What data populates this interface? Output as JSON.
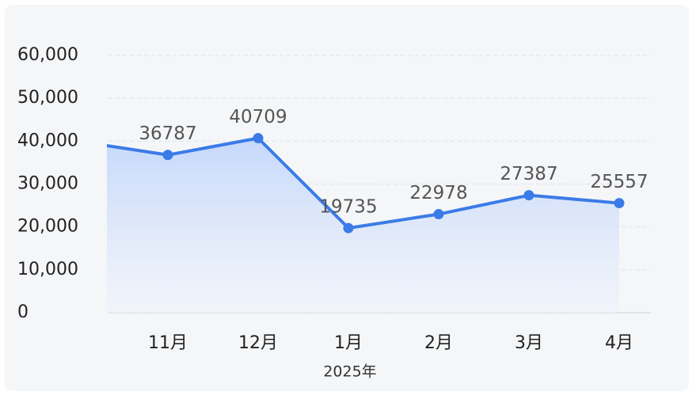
{
  "chart_data": {
    "type": "line",
    "x_label": "2025年",
    "categories": [
      null,
      "11月",
      "12月",
      "1月",
      "2月",
      "3月",
      "4月"
    ],
    "values": [
      40000,
      36787,
      40709,
      19735,
      22978,
      27387,
      25557
    ],
    "color": "#3b7be8",
    "ylim": [
      0,
      60000
    ],
    "yticks": [
      0,
      {
        "value": 10000,
        "label": "10,000"
      },
      {
        "value": 20000,
        "label": "20,000"
      },
      {
        "value": 30000,
        "label": "30,000"
      },
      {
        "value": 40000,
        "label": "40,000"
      },
      {
        "value": 50000,
        "label": "50,000"
      },
      {
        "value": 60000,
        "label": "60,000"
      }
    ],
    "grid": true
  }
}
